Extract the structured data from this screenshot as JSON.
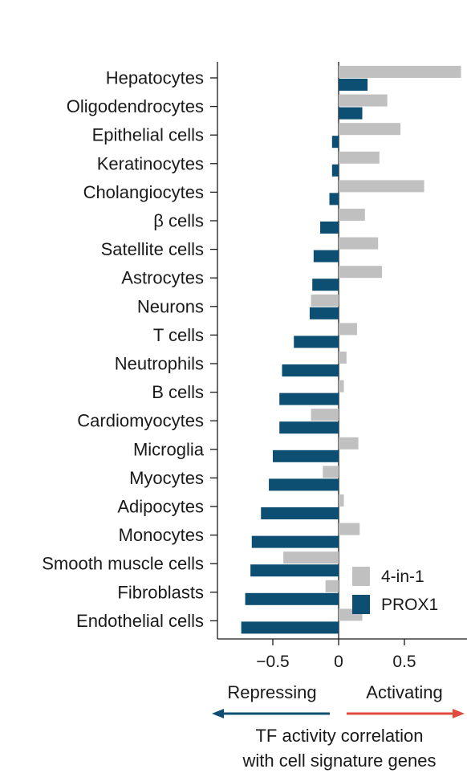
{
  "chart_data": {
    "type": "bar",
    "orientation": "horizontal",
    "categories": [
      "Hepatocytes",
      "Oligodendrocytes",
      "Epithelial cells",
      "Keratinocytes",
      "Cholangiocytes",
      "β cells",
      "Satellite cells",
      "Astrocytes",
      "Neurons",
      "T cells",
      "Neutrophils",
      "B cells",
      "Cardiomyocytes",
      "Microglia",
      "Myocytes",
      "Adipocytes",
      "Monocytes",
      "Smooth muscle cells",
      "Fibroblasts",
      "Endothelial cells"
    ],
    "series": [
      {
        "name": "4-in-1",
        "color": "#c0c0c0",
        "values": [
          0.93,
          0.37,
          0.47,
          0.31,
          0.65,
          0.2,
          0.3,
          0.33,
          -0.21,
          0.14,
          0.06,
          0.04,
          -0.21,
          0.15,
          -0.12,
          0.04,
          0.16,
          -0.42,
          -0.1,
          0.18
        ]
      },
      {
        "name": "PROX1",
        "color": "#0d4f73",
        "values": [
          0.22,
          0.18,
          -0.05,
          -0.05,
          -0.07,
          -0.14,
          -0.19,
          -0.2,
          -0.22,
          -0.34,
          -0.43,
          -0.45,
          -0.45,
          -0.5,
          -0.53,
          -0.59,
          -0.66,
          -0.67,
          -0.71,
          -0.74
        ]
      }
    ],
    "xticks": [
      -0.5,
      0,
      0.5
    ],
    "xtick_labels": [
      "−0.5",
      "0",
      "0.5"
    ],
    "xlim": [
      -0.92,
      0.93
    ],
    "legend": {
      "position": "bottom-right"
    },
    "grid": false,
    "direction_labels": {
      "left": "Repressing",
      "right": "Activating",
      "left_color": "#0d4f73",
      "right_color": "#e04b3f"
    },
    "xlabel_lines": [
      "TF activity correlation",
      "with cell signature genes"
    ]
  }
}
